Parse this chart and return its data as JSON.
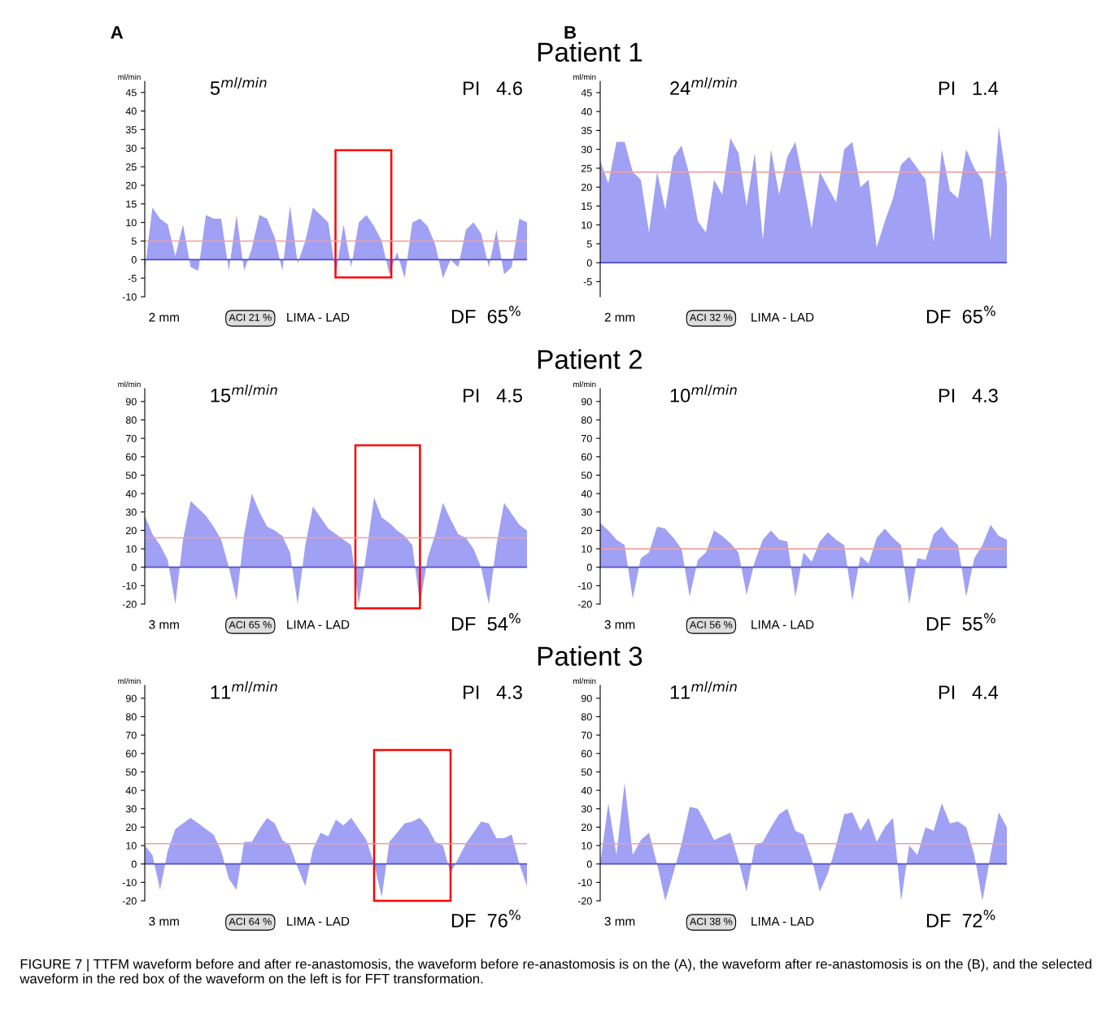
{
  "chart_data": [
    {
      "type": "area",
      "subtitle": "A",
      "ylabel": "ml/min",
      "ylim": [
        -10,
        48
      ],
      "yticks": [
        -10,
        -5,
        0,
        5,
        10,
        15,
        20,
        25,
        30,
        35,
        40,
        45
      ],
      "tick_labels": "y",
      "categories": [
        null,
        null,
        null,
        null,
        null,
        null,
        null,
        null,
        null,
        null,
        null,
        null,
        null,
        null,
        null,
        null,
        null,
        null,
        null,
        null,
        null,
        null,
        null,
        null,
        null,
        null,
        null,
        null,
        null,
        null,
        null,
        null,
        null,
        null,
        null,
        null,
        null,
        null,
        null,
        null,
        null,
        null,
        null,
        null,
        null,
        null,
        null,
        null,
        null,
        null,
        null
      ],
      "series": [
        {
          "color": "#8080f0",
          "values": [
            -3,
            14,
            11,
            9.5,
            1,
            9.5,
            -2,
            -3,
            12,
            11,
            11,
            -3,
            12,
            -3,
            3,
            12,
            11,
            6,
            -3,
            14.5,
            -1,
            5,
            14,
            12,
            10,
            -4,
            9.5,
            -2,
            10,
            12,
            9,
            5,
            -4,
            2,
            -5,
            10,
            11,
            9,
            4,
            -5,
            0,
            -2,
            8,
            10,
            7,
            -2,
            8,
            -4,
            -2,
            11,
            10
          ]
        }
      ],
      "ref_lines": [
        {
          "axis": "y",
          "value": 0,
          "label": null,
          "color": "#5050c0"
        },
        {
          "axis": "y",
          "value": 5,
          "label": null,
          "color": "#f0a0a0"
        }
      ],
      "annotations": [
        "5$^{ml/min}$",
        "PI   4.6",
        "DF  65$^{%}$",
        "2 mm",
        "ACI 21 %",
        "LIMA - LAD"
      ]
    },
    {
      "type": "area",
      "title": "Patient 1",
      "subtitle": "B",
      "ylabel": "ml/min",
      "ylim": [
        -9,
        48
      ],
      "yticks": [
        -5,
        0,
        5,
        10,
        15,
        20,
        25,
        30,
        35,
        40,
        45
      ],
      "tick_labels": "y",
      "categories": [
        null,
        null,
        null,
        null,
        null,
        null,
        null,
        null,
        null,
        null,
        null,
        null,
        null,
        null,
        null,
        null,
        null,
        null,
        null,
        null,
        null,
        null,
        null,
        null,
        null,
        null,
        null,
        null,
        null,
        null,
        null,
        null,
        null,
        null,
        null,
        null,
        null,
        null,
        null,
        null,
        null,
        null,
        null,
        null,
        null,
        null,
        null,
        null,
        null,
        null,
        null
      ],
      "series": [
        {
          "color": "#8080f0",
          "values": [
            27,
            21,
            32,
            32,
            24,
            22,
            8,
            24,
            14,
            28,
            31,
            23,
            11,
            8,
            22,
            18,
            33,
            29,
            15,
            29,
            6,
            30,
            18,
            28,
            32,
            21,
            9,
            24,
            20,
            16,
            30,
            32,
            20,
            22,
            4,
            11,
            17,
            26,
            28,
            25,
            22,
            5.5,
            30,
            19,
            17,
            30,
            25,
            22,
            6,
            36,
            21
          ]
        }
      ],
      "ref_lines": [
        {
          "axis": "y",
          "value": 0,
          "label": null,
          "color": "#5050c0"
        },
        {
          "axis": "y",
          "value": 24,
          "label": null,
          "color": "#f0a0a0"
        }
      ],
      "annotations": [
        "24$^{ml/min}$",
        "PI   1.4",
        "DF  65$^{%}$",
        "2 mm",
        "ACI 32 %",
        "LIMA - LAD"
      ]
    },
    {
      "type": "area",
      "ylabel": "ml/min",
      "ylim": [
        -20,
        97
      ],
      "yticks": [
        -20,
        -10,
        0,
        10,
        20,
        30,
        40,
        50,
        60,
        70,
        80,
        90
      ],
      "tick_labels": "y",
      "categories": [
        null,
        null,
        null,
        null,
        null,
        null,
        null,
        null,
        null,
        null,
        null,
        null,
        null,
        null,
        null,
        null,
        null,
        null,
        null,
        null,
        null,
        null,
        null,
        null,
        null,
        null,
        null,
        null,
        null,
        null,
        null,
        null,
        null,
        null,
        null,
        null,
        null,
        null,
        null,
        null,
        null,
        null,
        null,
        null,
        null,
        null,
        null,
        null,
        null,
        null,
        null
      ],
      "series": [
        {
          "color": "#8080f0",
          "values": [
            28,
            18,
            12,
            4,
            -20,
            15,
            36,
            32,
            28,
            22,
            15,
            0,
            -18,
            18,
            40,
            30,
            22,
            20,
            17,
            8,
            -20,
            12,
            33,
            27,
            21,
            18,
            15,
            12,
            -20,
            8,
            38,
            27,
            24,
            20,
            17,
            12,
            -20,
            5,
            18,
            35,
            26,
            18,
            16,
            10,
            0,
            -20,
            12,
            35,
            29,
            23,
            20
          ]
        }
      ],
      "ref_lines": [
        {
          "axis": "y",
          "value": 0,
          "label": null,
          "color": "#5050c0"
        },
        {
          "axis": "y",
          "value": 16,
          "label": null,
          "color": "#f0a0a0"
        }
      ],
      "annotations": [
        "15$^{ml/min}$",
        "PI   4.5",
        "DF  54$^{%}$",
        "3 mm",
        "ACI 65 %",
        "LIMA - LAD"
      ]
    },
    {
      "type": "area",
      "ylabel": "ml/min",
      "ylim": [
        -20,
        97
      ],
      "yticks": [
        -20,
        -10,
        0,
        10,
        20,
        30,
        40,
        50,
        60,
        70,
        80,
        90
      ],
      "tick_labels": "y",
      "categories": [
        null,
        null,
        null,
        null,
        null,
        null,
        null,
        null,
        null,
        null,
        null,
        null,
        null,
        null,
        null,
        null,
        null,
        null,
        null,
        null,
        null,
        null,
        null,
        null,
        null,
        null,
        null,
        null,
        null,
        null,
        null,
        null,
        null,
        null,
        null,
        null,
        null,
        null,
        null,
        null,
        null,
        null,
        null,
        null,
        null,
        null,
        null,
        null,
        null,
        null,
        null
      ],
      "title": "Patient 2",
      "series": [
        {
          "color": "#8080f0",
          "values": [
            24,
            20,
            15,
            12,
            -17,
            5,
            8,
            22,
            21,
            16,
            10,
            -16,
            4,
            8,
            20,
            17,
            13,
            8,
            -15,
            3,
            15,
            20,
            15,
            14,
            -16,
            8,
            3,
            14,
            19,
            15,
            12,
            -18,
            6,
            2,
            16,
            21,
            16,
            12,
            -20,
            5,
            4,
            18,
            22,
            16,
            12,
            -16,
            5,
            12,
            23,
            17,
            15
          ]
        }
      ],
      "ref_lines": [
        {
          "axis": "y",
          "value": 0,
          "label": null,
          "color": "#5050c0"
        },
        {
          "axis": "y",
          "value": 10,
          "label": null,
          "color": "#f0a0a0"
        }
      ],
      "annotations": [
        "10$^{ml/min}$",
        "PI   4.3",
        "DF  55$^{%}$",
        "3 mm",
        "ACI 56 %",
        "LIMA - LAD"
      ]
    },
    {
      "type": "area",
      "ylabel": "ml/min",
      "ylim": [
        -20,
        97
      ],
      "yticks": [
        -20,
        -10,
        0,
        10,
        20,
        30,
        40,
        50,
        60,
        70,
        80,
        90
      ],
      "tick_labels": "y",
      "categories": [
        null,
        null,
        null,
        null,
        null,
        null,
        null,
        null,
        null,
        null,
        null,
        null,
        null,
        null,
        null,
        null,
        null,
        null,
        null,
        null,
        null,
        null,
        null,
        null,
        null,
        null,
        null,
        null,
        null,
        null,
        null,
        null,
        null,
        null,
        null,
        null,
        null,
        null,
        null,
        null,
        null,
        null,
        null,
        null,
        null,
        null,
        null,
        null,
        null,
        null,
        null
      ],
      "series": [
        {
          "color": "#8080f0",
          "values": [
            10,
            5,
            -14,
            7,
            19,
            22,
            25,
            22,
            19,
            16,
            7,
            -8,
            -14,
            12,
            12,
            19,
            25,
            22,
            13,
            10,
            -2,
            -12,
            8,
            17,
            15,
            24,
            21,
            25,
            19,
            13,
            0,
            -18,
            12,
            17,
            22,
            23,
            25,
            20,
            12,
            10,
            -5,
            3,
            11,
            17,
            23,
            22,
            14,
            14,
            16,
            0,
            -12
          ]
        }
      ],
      "ref_lines": [
        {
          "axis": "y",
          "value": 0,
          "label": null,
          "color": "#5050c0"
        },
        {
          "axis": "y",
          "value": 11,
          "label": null,
          "color": "#f0a0a0"
        }
      ],
      "annotations": [
        "11$^{ml/min}$",
        "PI   4.3",
        "DF  76$^{%}$",
        "3 mm",
        "ACI 64 %",
        "LIMA - LAD"
      ]
    },
    {
      "type": "area",
      "ylabel": "ml/min",
      "ylim": [
        -20,
        97
      ],
      "yticks": [
        -20,
        -10,
        0,
        10,
        20,
        30,
        40,
        50,
        60,
        70,
        80,
        90
      ],
      "tick_labels": "y",
      "categories": [
        null,
        null,
        null,
        null,
        null,
        null,
        null,
        null,
        null,
        null,
        null,
        null,
        null,
        null,
        null,
        null,
        null,
        null,
        null,
        null,
        null,
        null,
        null,
        null,
        null,
        null,
        null,
        null,
        null,
        null,
        null,
        null,
        null,
        null,
        null,
        null,
        null,
        null,
        null,
        null,
        null,
        null,
        null,
        null,
        null,
        null,
        null,
        null,
        null,
        null,
        null
      ],
      "title": "Patient 3",
      "series": [
        {
          "color": "#8080f0",
          "values": [
            0,
            33,
            5,
            44,
            5,
            13,
            17,
            0,
            -20,
            -5,
            11,
            31,
            30,
            22,
            13,
            15,
            17,
            2,
            -15,
            10,
            12,
            20,
            27,
            30,
            18,
            16,
            3,
            -15,
            -5,
            10,
            27,
            28,
            18,
            25,
            12,
            20,
            25,
            -20,
            10,
            5,
            20,
            18,
            33,
            22,
            23,
            20,
            5,
            -20,
            5,
            28,
            20
          ]
        }
      ],
      "ref_lines": [
        {
          "axis": "y",
          "value": 0,
          "label": null,
          "color": "#5050c0"
        },
        {
          "axis": "y",
          "value": 11,
          "label": null,
          "color": "#f0a0a0"
        }
      ],
      "annotations": [
        "11$^{ml/min}$",
        "PI   4.4",
        "DF  72$^{%}$",
        "3 mm",
        "ACI 38 %",
        "LIMA - LAD",
        "FIGURE 7 | TTFM waveform before and after re-anastomosis, the waveform before re-anastomosis is on the (A), the waveform after re-anastomosis is on the (B), and the selected waveform in the red box of the waveform on the left is for FFT transformation."
      ]
    }
  ]
}
